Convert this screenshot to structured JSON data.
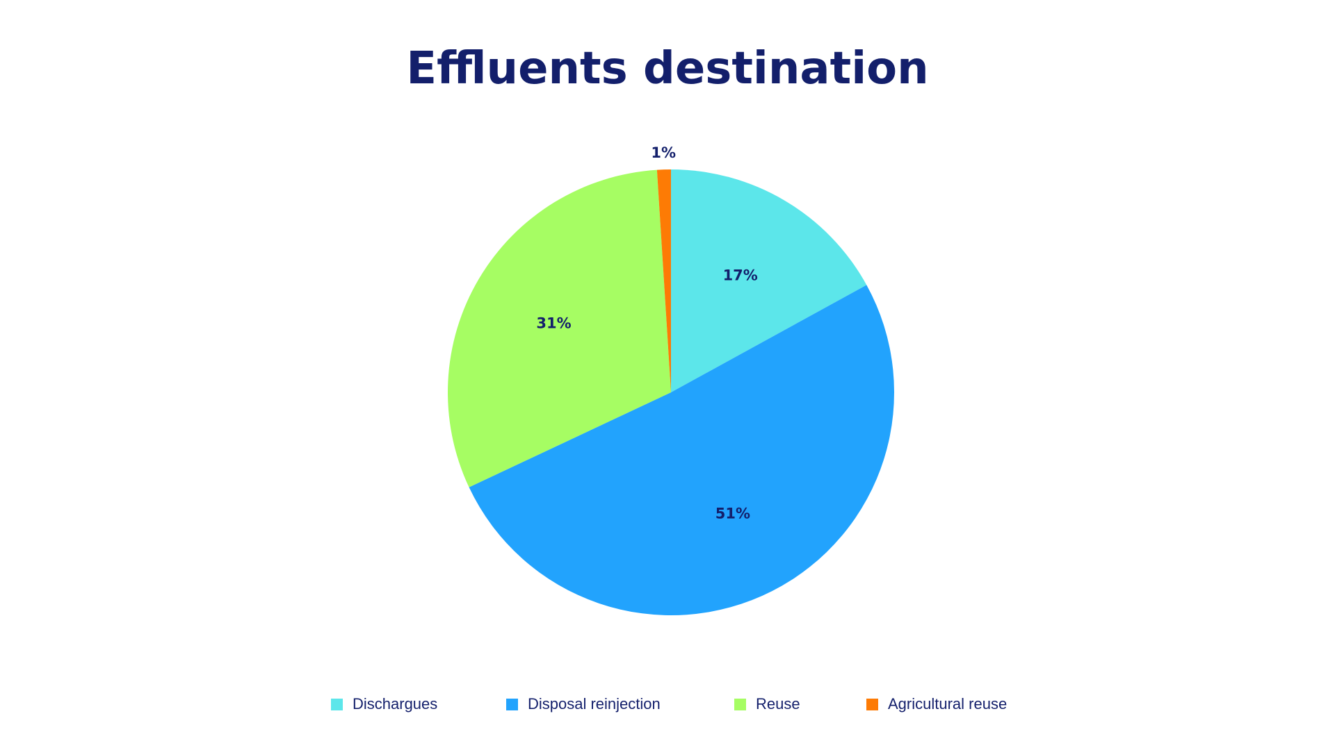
{
  "theme": {
    "text_color": "#131f6b",
    "background": "#ffffff"
  },
  "chart_data": {
    "type": "pie",
    "title": "Effluents destination",
    "legend_position": "bottom",
    "slices": [
      {
        "name": "Dischargues",
        "value": 17,
        "label": "17%",
        "color": "#5ce6ea"
      },
      {
        "name": "Disposal reinjection",
        "value": 51,
        "label": "51%",
        "color": "#22a3fd"
      },
      {
        "name": "Reuse",
        "value": 31,
        "label": "31%",
        "color": "#a6fd63"
      },
      {
        "name": "Agricultural reuse",
        "value": 1,
        "label": "1%",
        "color": "#fd7b05"
      }
    ]
  }
}
